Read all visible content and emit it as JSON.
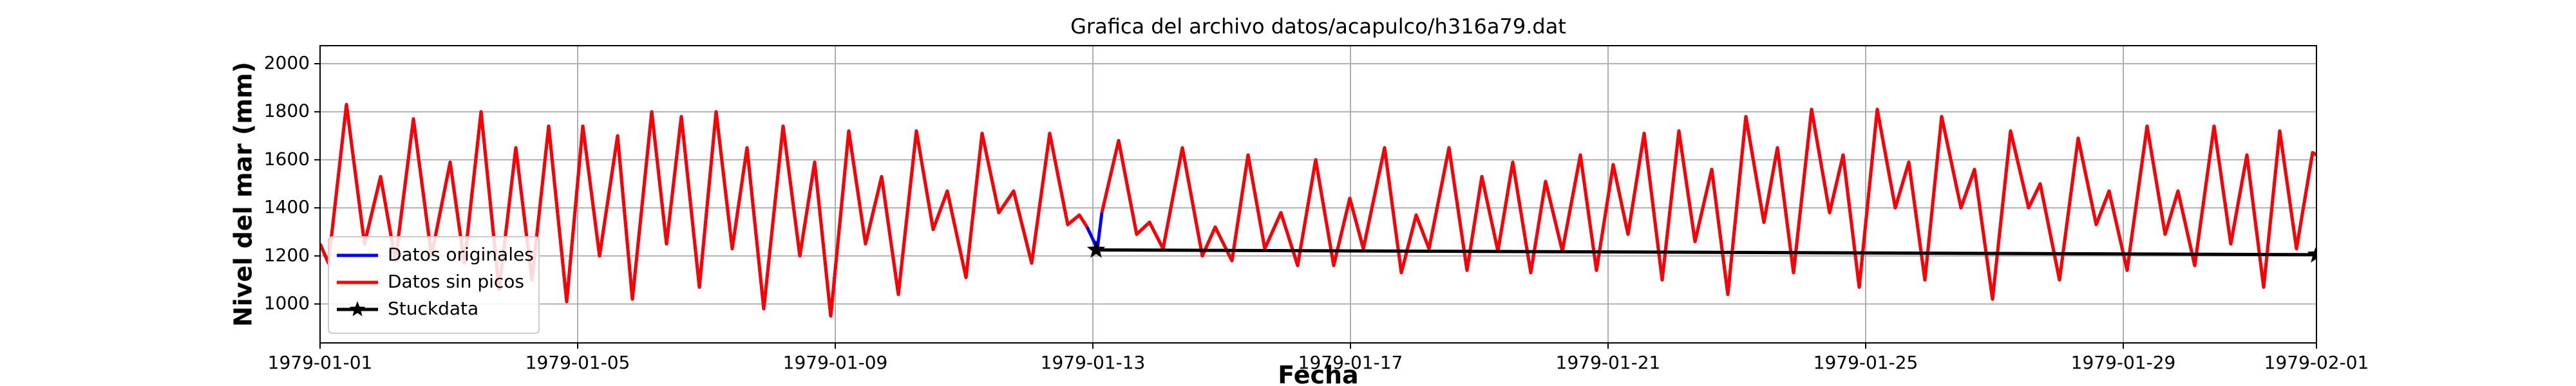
{
  "chart_data": {
    "type": "line",
    "title": "Grafica del archivo datos/acapulco/h316a79.dat",
    "xlabel": "Fecha",
    "ylabel": "Nivel del mar (mm)",
    "xlim": [
      0,
      31
    ],
    "xticks": [
      {
        "value": 0,
        "label": "1979-01-01"
      },
      {
        "value": 4,
        "label": "1979-01-05"
      },
      {
        "value": 8,
        "label": "1979-01-09"
      },
      {
        "value": 12,
        "label": "1979-01-13"
      },
      {
        "value": 16,
        "label": "1979-01-17"
      },
      {
        "value": 20,
        "label": "1979-01-21"
      },
      {
        "value": 24,
        "label": "1979-01-25"
      },
      {
        "value": 28,
        "label": "1979-01-29"
      },
      {
        "value": 31,
        "label": "1979-02-01"
      }
    ],
    "ylim": [
      838,
      2075
    ],
    "yticks": [
      1000,
      1200,
      1400,
      1600,
      1800,
      2000
    ],
    "grid": true,
    "legend": "lower left",
    "series": [
      {
        "name": "Datos originales",
        "color": "#0000ff",
        "x": [
          0,
          0.13,
          0.41,
          0.69,
          0.94,
          1.17,
          1.45,
          1.73,
          2.02,
          2.24,
          2.5,
          2.78,
          3.04,
          3.29,
          3.55,
          3.83,
          4.08,
          4.34,
          4.62,
          4.85,
          5.15,
          5.38,
          5.61,
          5.89,
          6.15,
          6.4,
          6.63,
          6.89,
          7.19,
          7.45,
          7.68,
          7.93,
          8.21,
          8.47,
          8.72,
          8.98,
          9.26,
          9.52,
          9.74,
          10.03,
          10.28,
          10.54,
          10.77,
          11.05,
          11.33,
          11.61,
          11.79,
          11.91,
          12.07,
          12.14,
          12.4,
          12.68,
          12.88,
          13.09,
          13.39,
          13.7,
          13.9,
          14.16,
          14.41,
          14.67,
          14.92,
          15.18,
          15.46,
          15.74,
          15.99,
          16.2,
          16.53,
          16.79,
          17.02,
          17.22,
          17.53,
          17.81,
          18.04,
          18.29,
          18.52,
          18.8,
          19.03,
          19.29,
          19.57,
          19.82,
          20.08,
          20.31,
          20.56,
          20.84,
          21.1,
          21.35,
          21.61,
          21.86,
          22.14,
          22.42,
          22.63,
          22.88,
          23.16,
          23.44,
          23.65,
          23.9,
          24.18,
          24.46,
          24.67,
          24.92,
          25.18,
          25.48,
          25.69,
          25.97,
          26.25,
          26.53,
          26.71,
          27.01,
          27.3,
          27.58,
          27.78,
          28.06,
          28.37,
          28.65,
          28.85,
          29.11,
          29.41,
          29.67,
          29.92,
          30.18,
          30.43,
          30.69,
          30.94,
          31
        ],
        "values": [
          1250,
          1170,
          1830,
          1250,
          1530,
          1180,
          1770,
          1200,
          1590,
          1170,
          1800,
          1060,
          1650,
          1100,
          1740,
          1010,
          1740,
          1200,
          1700,
          1020,
          1800,
          1250,
          1780,
          1070,
          1800,
          1230,
          1650,
          980,
          1740,
          1200,
          1590,
          950,
          1720,
          1250,
          1530,
          1040,
          1720,
          1310,
          1470,
          1110,
          1710,
          1380,
          1470,
          1170,
          1710,
          1330,
          1370,
          1320,
          1230,
          1380,
          1680,
          1290,
          1340,
          1230,
          1650,
          1200,
          1320,
          1180,
          1620,
          1230,
          1380,
          1160,
          1600,
          1160,
          1440,
          1230,
          1650,
          1130,
          1370,
          1230,
          1650,
          1140,
          1530,
          1220,
          1590,
          1130,
          1510,
          1220,
          1620,
          1140,
          1580,
          1290,
          1710,
          1100,
          1720,
          1260,
          1560,
          1040,
          1780,
          1340,
          1650,
          1130,
          1810,
          1380,
          1620,
          1070,
          1810,
          1400,
          1590,
          1100,
          1780,
          1400,
          1560,
          1020,
          1720,
          1400,
          1500,
          1100,
          1690,
          1330,
          1470,
          1140,
          1740,
          1290,
          1470,
          1160,
          1740,
          1250,
          1620,
          1070,
          1720,
          1230,
          1630,
          1620
        ]
      },
      {
        "name": "Datos sin picos",
        "color": "#ff0000",
        "x": [
          0,
          0.13,
          0.41,
          0.69,
          0.94,
          1.17,
          1.45,
          1.73,
          2.02,
          2.24,
          2.5,
          2.78,
          3.04,
          3.29,
          3.55,
          3.83,
          4.08,
          4.34,
          4.62,
          4.85,
          5.15,
          5.38,
          5.61,
          5.89,
          6.15,
          6.4,
          6.63,
          6.89,
          7.19,
          7.45,
          7.68,
          7.93,
          8.21,
          8.47,
          8.72,
          8.98,
          9.26,
          9.52,
          9.74,
          10.03,
          10.28,
          10.54,
          10.77,
          11.05,
          11.33,
          11.61,
          11.79,
          11.91,
          12.07,
          12.14,
          12.4,
          12.68,
          12.88,
          13.09,
          13.39,
          13.7,
          13.9,
          14.16,
          14.41,
          14.67,
          14.92,
          15.18,
          15.46,
          15.74,
          15.99,
          16.2,
          16.53,
          16.79,
          17.02,
          17.22,
          17.53,
          17.81,
          18.04,
          18.29,
          18.52,
          18.8,
          19.03,
          19.29,
          19.57,
          19.82,
          20.08,
          20.31,
          20.56,
          20.84,
          21.1,
          21.35,
          21.61,
          21.86,
          22.14,
          22.42,
          22.63,
          22.88,
          23.16,
          23.44,
          23.65,
          23.9,
          24.18,
          24.46,
          24.67,
          24.92,
          25.18,
          25.48,
          25.69,
          25.97,
          26.25,
          26.53,
          26.71,
          27.01,
          27.3,
          27.58,
          27.78,
          28.06,
          28.37,
          28.65,
          28.85,
          29.11,
          29.41,
          29.67,
          29.92,
          30.18,
          30.43,
          30.69,
          30.94,
          31
        ],
        "values": [
          1250,
          1170,
          1830,
          1250,
          1530,
          1180,
          1770,
          1200,
          1590,
          1170,
          1800,
          1060,
          1650,
          1100,
          1740,
          1010,
          1740,
          1200,
          1700,
          1020,
          1800,
          1250,
          1780,
          1070,
          1800,
          1230,
          1650,
          980,
          1740,
          1200,
          1590,
          950,
          1720,
          1250,
          1530,
          1040,
          1720,
          1310,
          1470,
          1110,
          1710,
          1380,
          1470,
          1170,
          1710,
          1330,
          1370,
          1320,
          null,
          1380,
          1680,
          1290,
          1340,
          1230,
          1650,
          1200,
          1320,
          1180,
          1620,
          1230,
          1380,
          1160,
          1600,
          1160,
          1440,
          1230,
          1650,
          1130,
          1370,
          1230,
          1650,
          1140,
          1530,
          1220,
          1590,
          1130,
          1510,
          1220,
          1620,
          1140,
          1580,
          1290,
          1710,
          1100,
          1720,
          1260,
          1560,
          1040,
          1780,
          1340,
          1650,
          1130,
          1810,
          1380,
          1620,
          1070,
          1810,
          1400,
          1590,
          1100,
          1780,
          1400,
          1560,
          1020,
          1720,
          1400,
          1500,
          1100,
          1690,
          1330,
          1470,
          1140,
          1740,
          1290,
          1470,
          1160,
          1740,
          1250,
          1620,
          1070,
          1720,
          1230,
          1630,
          1620
        ]
      },
      {
        "name": "Stuckdata",
        "color": "#000000",
        "marker": "*",
        "x": [
          12.05,
          31
        ],
        "values": [
          1225,
          1205
        ]
      }
    ]
  }
}
